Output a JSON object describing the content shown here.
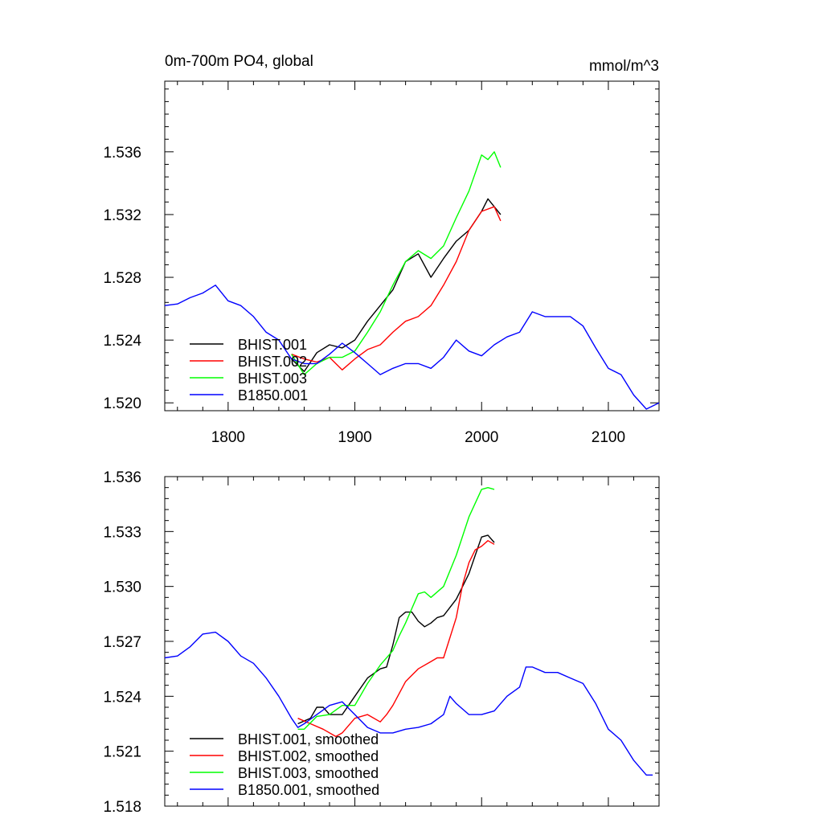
{
  "chart_data": [
    {
      "type": "line",
      "title": "0m-700m PO4, global",
      "units_label": "mmol/m^3",
      "xlim": [
        1750,
        2140
      ],
      "ylim": [
        1.5195,
        1.5405
      ],
      "x_ticks": [
        1800,
        1900,
        2000,
        2100
      ],
      "x_tick_labels": [
        "1800",
        "1900",
        "2000",
        "2100"
      ],
      "y_ticks": [
        1.52,
        1.524,
        1.528,
        1.532,
        1.536
      ],
      "y_tick_labels": [
        "1.520",
        "1.524",
        "1.528",
        "1.532",
        "1.536"
      ],
      "legend_position": "bottom-left",
      "series": [
        {
          "name": "BHIST.001",
          "color": "#000000",
          "x": [
            1850,
            1860,
            1870,
            1880,
            1890,
            1900,
            1910,
            1920,
            1930,
            1940,
            1950,
            1960,
            1970,
            1980,
            1990,
            2000,
            2005,
            2010,
            2015
          ],
          "y": [
            1.5228,
            1.522,
            1.5232,
            1.5237,
            1.5235,
            1.524,
            1.5252,
            1.5262,
            1.5272,
            1.529,
            1.5295,
            1.528,
            1.5292,
            1.5303,
            1.531,
            1.5322,
            1.533,
            1.5325,
            1.532
          ]
        },
        {
          "name": "BHIST.002",
          "color": "#ff0000",
          "x": [
            1850,
            1860,
            1870,
            1880,
            1890,
            1900,
            1910,
            1920,
            1930,
            1940,
            1950,
            1960,
            1970,
            1980,
            1990,
            2000,
            2010,
            2015
          ],
          "y": [
            1.5231,
            1.5228,
            1.5226,
            1.5229,
            1.5221,
            1.5228,
            1.5234,
            1.5237,
            1.5245,
            1.5252,
            1.5255,
            1.5262,
            1.5275,
            1.529,
            1.531,
            1.5322,
            1.5325,
            1.5316
          ]
        },
        {
          "name": "BHIST.003",
          "color": "#00ff00",
          "x": [
            1850,
            1860,
            1870,
            1880,
            1890,
            1900,
            1910,
            1920,
            1930,
            1940,
            1950,
            1960,
            1970,
            1980,
            1990,
            2000,
            2005,
            2010,
            2015
          ],
          "y": [
            1.5231,
            1.5218,
            1.5225,
            1.5229,
            1.5229,
            1.5233,
            1.5245,
            1.5258,
            1.5275,
            1.529,
            1.5297,
            1.5292,
            1.53,
            1.5318,
            1.5335,
            1.5358,
            1.5355,
            1.536,
            1.535
          ]
        },
        {
          "name": "B1850.001",
          "color": "#0000ff",
          "x": [
            1750,
            1760,
            1770,
            1780,
            1790,
            1800,
            1810,
            1820,
            1830,
            1840,
            1850,
            1860,
            1870,
            1880,
            1890,
            1900,
            1910,
            1920,
            1930,
            1940,
            1950,
            1960,
            1970,
            1980,
            1990,
            2000,
            2010,
            2020,
            2030,
            2040,
            2050,
            2060,
            2070,
            2080,
            2090,
            2100,
            2110,
            2120,
            2130,
            2140
          ],
          "y": [
            1.5262,
            1.5263,
            1.5267,
            1.527,
            1.5275,
            1.5265,
            1.5262,
            1.5255,
            1.5245,
            1.524,
            1.5228,
            1.5225,
            1.5225,
            1.5231,
            1.5238,
            1.5232,
            1.5225,
            1.5218,
            1.5222,
            1.5225,
            1.5225,
            1.5222,
            1.5229,
            1.524,
            1.5233,
            1.523,
            1.5237,
            1.5242,
            1.5245,
            1.5258,
            1.5255,
            1.5255,
            1.5255,
            1.5249,
            1.5235,
            1.5222,
            1.5218,
            1.5205,
            1.5196,
            1.52
          ]
        }
      ]
    },
    {
      "type": "line",
      "title": "",
      "xlim": [
        1750,
        2140
      ],
      "ylim": [
        1.518,
        1.536
      ],
      "x_ticks": [
        1800,
        1900,
        2000,
        2100
      ],
      "y_ticks": [
        1.518,
        1.521,
        1.524,
        1.527,
        1.53,
        1.533,
        1.536
      ],
      "y_tick_labels": [
        "1.518",
        "1.521",
        "1.524",
        "1.527",
        "1.530",
        "1.533",
        "1.536"
      ],
      "legend_position": "bottom-left",
      "series": [
        {
          "name": "BHIST.001, smoothed",
          "color": "#000000",
          "x": [
            1855,
            1865,
            1870,
            1875,
            1880,
            1890,
            1900,
            1910,
            1920,
            1925,
            1930,
            1935,
            1940,
            1945,
            1950,
            1955,
            1960,
            1965,
            1970,
            1980,
            1990,
            1995,
            2000,
            2005,
            2010
          ],
          "y": [
            1.5225,
            1.5228,
            1.5234,
            1.5234,
            1.523,
            1.523,
            1.524,
            1.525,
            1.5255,
            1.5256,
            1.5268,
            1.5283,
            1.5286,
            1.5286,
            1.5281,
            1.5278,
            1.528,
            1.5283,
            1.5284,
            1.5293,
            1.5307,
            1.5317,
            1.5327,
            1.5328,
            1.5324
          ]
        },
        {
          "name": "BHIST.002, smoothed",
          "color": "#ff0000",
          "x": [
            1855,
            1865,
            1875,
            1885,
            1890,
            1900,
            1910,
            1920,
            1925,
            1930,
            1940,
            1950,
            1960,
            1965,
            1970,
            1980,
            1985,
            1990,
            1995,
            2000,
            2005,
            2010
          ],
          "y": [
            1.5228,
            1.5225,
            1.5222,
            1.5218,
            1.522,
            1.5228,
            1.523,
            1.5226,
            1.523,
            1.5235,
            1.5248,
            1.5255,
            1.5259,
            1.5261,
            1.5261,
            1.5283,
            1.5301,
            1.5313,
            1.532,
            1.5322,
            1.5325,
            1.5323
          ]
        },
        {
          "name": "BHIST.003, smoothed",
          "color": "#00ff00",
          "x": [
            1855,
            1860,
            1870,
            1880,
            1890,
            1900,
            1910,
            1920,
            1930,
            1935,
            1940,
            1945,
            1950,
            1955,
            1960,
            1970,
            1980,
            1990,
            2000,
            2005,
            2010
          ],
          "y": [
            1.5222,
            1.5222,
            1.5229,
            1.523,
            1.5235,
            1.5235,
            1.5247,
            1.5257,
            1.5265,
            1.5273,
            1.528,
            1.5288,
            1.5296,
            1.5297,
            1.5294,
            1.53,
            1.5317,
            1.5338,
            1.5353,
            1.5354,
            1.5353
          ]
        },
        {
          "name": "B1850.001, smoothed",
          "color": "#0000ff",
          "x": [
            1750,
            1760,
            1770,
            1780,
            1790,
            1800,
            1810,
            1820,
            1830,
            1840,
            1850,
            1855,
            1860,
            1870,
            1880,
            1890,
            1900,
            1910,
            1920,
            1930,
            1940,
            1950,
            1960,
            1970,
            1975,
            1980,
            1990,
            2000,
            2010,
            2020,
            2030,
            2035,
            2040,
            2050,
            2060,
            2070,
            2080,
            2090,
            2100,
            2110,
            2120,
            2130,
            2135
          ],
          "y": [
            1.5261,
            1.5262,
            1.5267,
            1.5274,
            1.5275,
            1.527,
            1.5262,
            1.5258,
            1.525,
            1.524,
            1.5228,
            1.5223,
            1.5225,
            1.523,
            1.5235,
            1.5237,
            1.523,
            1.5223,
            1.522,
            1.522,
            1.5222,
            1.5223,
            1.5225,
            1.523,
            1.524,
            1.5236,
            1.523,
            1.523,
            1.5232,
            1.524,
            1.5245,
            1.5256,
            1.5256,
            1.5253,
            1.5253,
            1.525,
            1.5247,
            1.5236,
            1.5222,
            1.5216,
            1.5205,
            1.5197,
            1.5197
          ]
        }
      ]
    }
  ]
}
